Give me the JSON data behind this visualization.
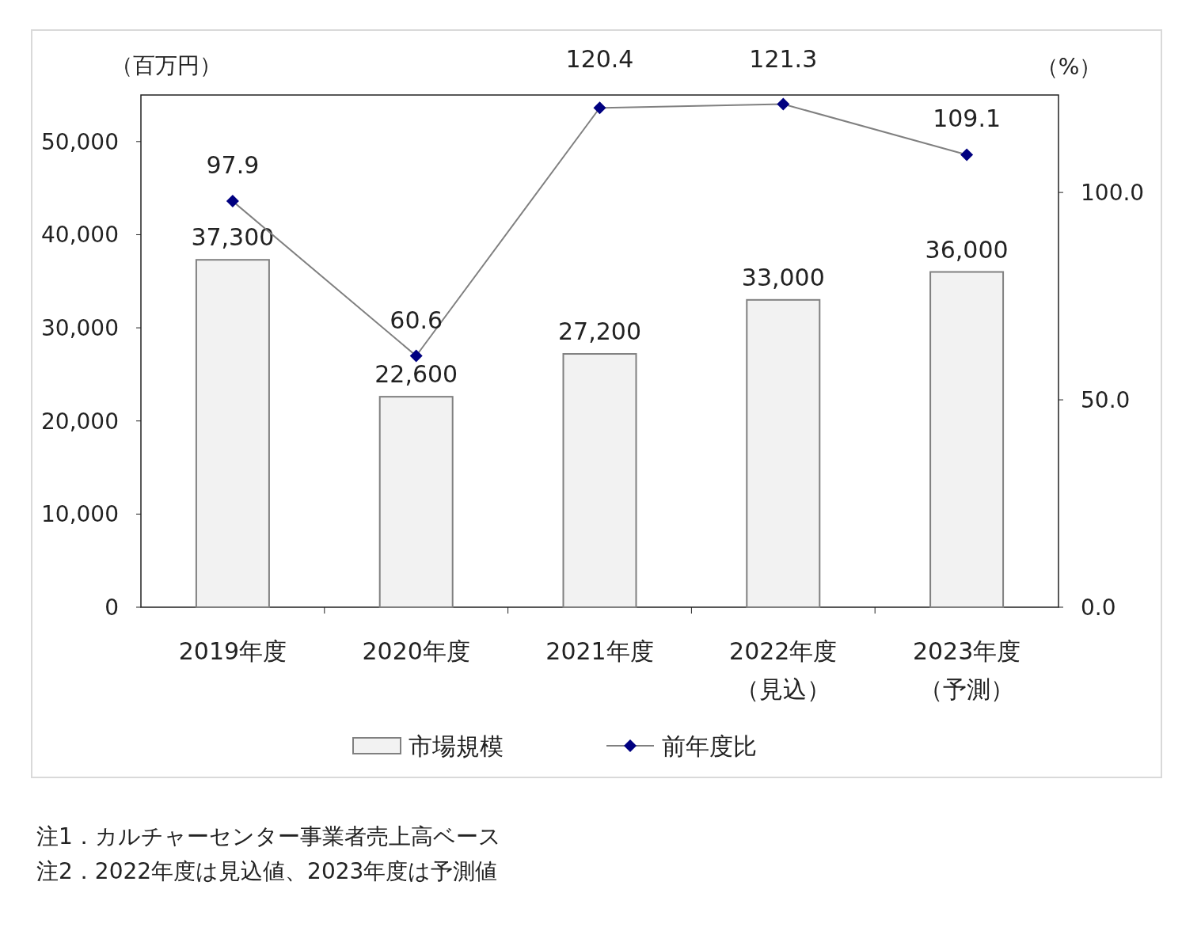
{
  "chart_data": {
    "type": "bar",
    "categories": [
      "2019年度",
      "2020年度",
      "2021年度",
      "2022年度（見込）",
      "2023年度（予測）"
    ],
    "ylabel": "（百万円）",
    "y2label": "（%）",
    "ylim": [
      0,
      55000
    ],
    "yticks": [
      {
        "value": 0,
        "label": "0"
      },
      {
        "value": 10000,
        "label": "10,000"
      },
      {
        "value": 20000,
        "label": "20,000"
      },
      {
        "value": 30000,
        "label": "30,000"
      },
      {
        "value": 40000,
        "label": "40,000"
      },
      {
        "value": 50000,
        "label": "50,000"
      }
    ],
    "y2lim": [
      0,
      123.5
    ],
    "y2ticks": [
      {
        "value": 0,
        "label": "0.0"
      },
      {
        "value": 50,
        "label": "50.0"
      },
      {
        "value": 100,
        "label": "100.0"
      }
    ],
    "series": [
      {
        "name": "市場規模",
        "color": "#f2f2f2",
        "values": [
          37300,
          22600,
          27200,
          33000,
          36000
        ],
        "value_labels": [
          "37,300",
          "22,600",
          "27,200",
          "33,000",
          "36,000"
        ]
      },
      {
        "name": "前年度比",
        "type": "line",
        "axis": "y2",
        "color": "#000080",
        "marker": "diamond",
        "values": [
          97.9,
          60.6,
          120.4,
          121.3,
          109.1
        ],
        "value_labels": [
          "97.9",
          "60.6",
          "120.4",
          "121.3",
          "109.1"
        ]
      }
    ],
    "legend": "bottom",
    "grid": false,
    "annotations": [
      "注1．カルチャーセンター事業者売上高ベース",
      "注2．2022年度は見込値、2023年度は予測値"
    ]
  }
}
